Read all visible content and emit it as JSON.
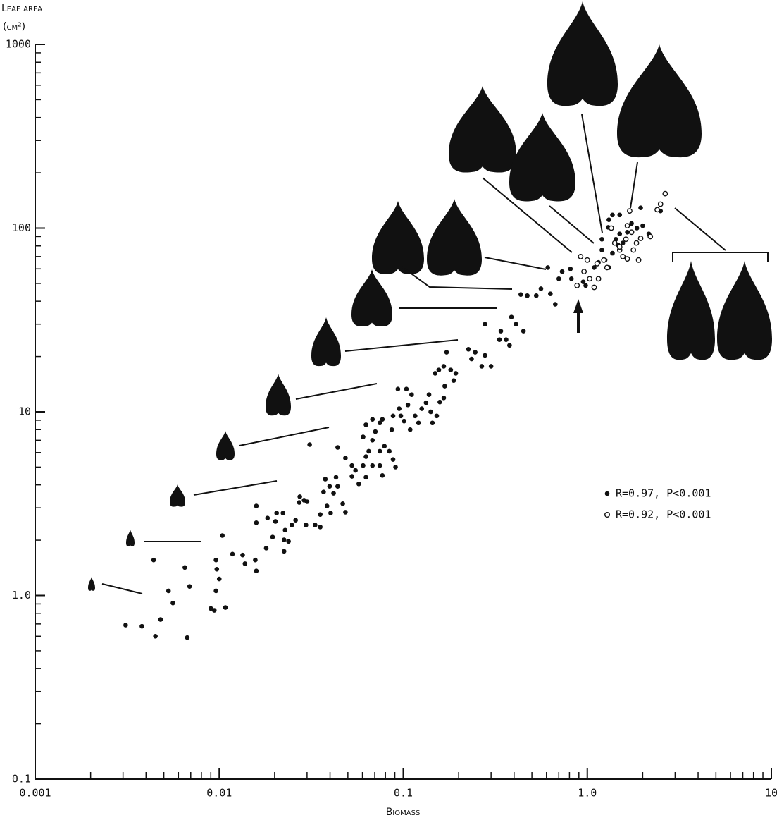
{
  "chart_data": {
    "type": "scatter",
    "xlabel": "Biomass",
    "ylabel": [
      "Leaf area",
      "(cm²)"
    ],
    "log_x": true,
    "log_y": true,
    "minor_ticks": true,
    "legend_position": "right",
    "xlim": [
      0.001,
      10
    ],
    "ylim": [
      0.1,
      1000
    ],
    "xticks": [
      0.001,
      0.01,
      0.1,
      {
        "value": 1,
        "label": "1.0"
      },
      10
    ],
    "yticks": [
      0.1,
      {
        "value": 1,
        "label": "1.0"
      },
      10,
      100,
      1000
    ],
    "series": [
      {
        "name": "R=0.97, P<0.001",
        "color": "#111111",
        "marker": "filled",
        "x": [
          0.0031,
          0.0038,
          0.0045,
          0.0048,
          0.0053,
          0.0056,
          0.0044,
          0.0065,
          0.0069,
          0.0067,
          0.009,
          0.0094,
          0.0108,
          0.0096,
          0.01,
          0.0097,
          0.0096,
          0.0104,
          0.0118,
          0.0134,
          0.0138,
          0.0157,
          0.0159,
          0.018,
          0.0195,
          0.0159,
          0.0159,
          0.0183,
          0.0205,
          0.0222,
          0.0202,
          0.0228,
          0.0248,
          0.0225,
          0.0238,
          0.0225,
          0.0272,
          0.0274,
          0.0289,
          0.03,
          0.031,
          0.026,
          0.0296,
          0.0332,
          0.0354,
          0.0354,
          0.0385,
          0.0403,
          0.0369,
          0.0398,
          0.0418,
          0.044,
          0.0485,
          0.0377,
          0.0431,
          0.0469,
          0.0485,
          0.044,
          0.0526,
          0.055,
          0.0605,
          0.0627,
          0.0649,
          0.068,
          0.0627,
          0.0573,
          0.0526,
          0.068,
          0.0705,
          0.0746,
          0.077,
          0.068,
          0.0627,
          0.0605,
          0.0746,
          0.079,
          0.084,
          0.0746,
          0.077,
          0.088,
          0.0908,
          0.0866,
          0.088,
          0.095,
          0.097,
          0.101,
          0.0935,
          0.104,
          0.106,
          0.111,
          0.116,
          0.121,
          0.126,
          0.109,
          0.133,
          0.138,
          0.141,
          0.144,
          0.152,
          0.158,
          0.166,
          0.149,
          0.156,
          0.166,
          0.181,
          0.193,
          0.188,
          0.168,
          0.172,
          0.226,
          0.235,
          0.246,
          0.267,
          0.278,
          0.3,
          0.278,
          0.333,
          0.339,
          0.362,
          0.378,
          0.387,
          0.41,
          0.45,
          0.435,
          0.472,
          0.528,
          0.56,
          0.61,
          0.63,
          0.67,
          0.7,
          0.73,
          0.81,
          0.82,
          0.95,
          0.98,
          1.09,
          1.15,
          1.2,
          1.25,
          1.31,
          1.37,
          1.43,
          1.47,
          1.5,
          1.56,
          1.37,
          1.5,
          1.31,
          1.65,
          1.74,
          1.86,
          2.0,
          2.16,
          1.95,
          2.5,
          1.3,
          1.2
        ],
        "values": [
          0.69,
          0.68,
          0.6,
          0.74,
          1.06,
          0.91,
          1.56,
          1.42,
          1.12,
          0.59,
          0.85,
          0.83,
          0.86,
          1.06,
          1.23,
          1.39,
          1.56,
          2.12,
          1.68,
          1.66,
          1.49,
          1.56,
          1.36,
          1.81,
          2.08,
          3.07,
          2.49,
          2.64,
          2.81,
          2.81,
          2.53,
          2.27,
          2.42,
          2.01,
          1.97,
          1.74,
          3.21,
          3.45,
          3.3,
          3.24,
          6.63,
          2.57,
          2.42,
          2.42,
          2.36,
          2.76,
          3.07,
          2.81,
          3.66,
          3.93,
          3.6,
          6.4,
          5.6,
          4.3,
          4.4,
          3.16,
          2.84,
          3.93,
          5.1,
          4.8,
          5.1,
          5.7,
          6.1,
          5.1,
          4.4,
          4.05,
          4.45,
          7.0,
          7.8,
          8.7,
          9.1,
          9.1,
          8.5,
          7.3,
          6.1,
          6.5,
          6.1,
          5.1,
          4.5,
          5.5,
          5.0,
          8.0,
          9.5,
          10.4,
          9.5,
          8.9,
          13.3,
          13.3,
          10.9,
          12.4,
          9.5,
          8.7,
          10.4,
          8.0,
          11.2,
          12.4,
          10,
          8.7,
          9.5,
          11.3,
          11.9,
          16.2,
          16.9,
          17.7,
          16.9,
          16.2,
          14.8,
          13.8,
          21.1,
          21.9,
          19.4,
          21.1,
          17.7,
          20.3,
          17.7,
          30,
          24.7,
          27.5,
          24.7,
          23,
          32.8,
          30,
          27.5,
          43.5,
          42.9,
          42.9,
          46.8,
          61,
          43.9,
          38.5,
          53,
          58,
          60,
          53,
          51,
          48.7,
          61,
          65,
          76,
          67,
          61,
          73,
          87,
          81,
          93,
          83,
          118,
          118,
          111,
          95,
          106,
          100,
          103,
          93,
          129,
          124,
          101,
          87
        ]
      },
      {
        "name": "R=0.92, P<0.001",
        "color": "#111111",
        "marker": "open",
        "x": [
          0.92,
          0.88,
          0.96,
          1.0,
          1.03,
          1.09,
          1.15,
          1.13,
          1.23,
          1.28,
          1.35,
          1.41,
          1.5,
          1.62,
          1.65,
          1.74,
          1.56,
          1.5,
          1.7,
          1.78,
          1.85,
          1.9,
          1.65,
          1.95,
          2.4,
          2.65,
          2.5,
          2.2
        ],
        "values": [
          70,
          48.7,
          58,
          67,
          53,
          47.6,
          53,
          64,
          67,
          61,
          100,
          83,
          76,
          87,
          103,
          95,
          70,
          79,
          124,
          76,
          83,
          67,
          68,
          88,
          126,
          154,
          135,
          90
        ]
      }
    ]
  }
}
